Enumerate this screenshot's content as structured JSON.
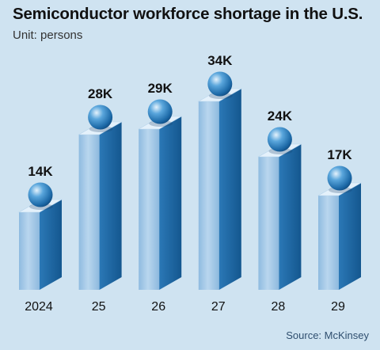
{
  "header": {
    "title": "Semiconductor workforce shortage in the U.S.",
    "subtitle": "Unit: persons"
  },
  "source": "Source: McKinsey",
  "colors": {
    "background": "#cfe3f1",
    "bar_front": "#9ec6e6",
    "bar_side": "#1f6aa5",
    "bar_top": "#e6f2fb",
    "sphere": "#2f86c6"
  },
  "chart_data": {
    "type": "bar",
    "categories": [
      "2024",
      "25",
      "26",
      "27",
      "28",
      "29"
    ],
    "values": [
      14,
      28,
      29,
      34,
      24,
      17
    ],
    "value_labels": [
      "14K",
      "28K",
      "29K",
      "34K",
      "24K",
      "17K"
    ],
    "title": "Semiconductor workforce shortage in the U.S.",
    "subtitle": "Unit: persons",
    "xlabel": "",
    "ylabel": "",
    "ylim": [
      0,
      34
    ],
    "grid": false,
    "legend": "none",
    "style": "3d-columns-with-spheres"
  }
}
